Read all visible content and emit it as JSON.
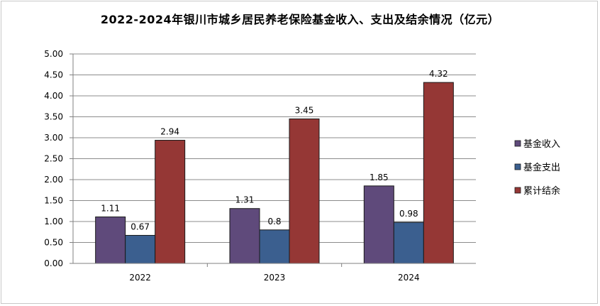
{
  "chart_data": {
    "type": "bar",
    "title": "2022-2024年银川市城乡居民养老保险基金收入、支出及结余情况（亿元）",
    "categories": [
      "2022",
      "2023",
      "2024"
    ],
    "series": [
      {
        "name": "基金收入",
        "values": [
          1.11,
          1.31,
          1.85
        ],
        "labels": [
          "1.11",
          "1.31",
          "1.85"
        ],
        "color": "#5f4a7b"
      },
      {
        "name": "基金支出",
        "values": [
          0.67,
          0.8,
          0.98
        ],
        "labels": [
          "0.67",
          "0.8",
          "0.98"
        ],
        "color": "#3b5f8f"
      },
      {
        "name": "累计结余",
        "values": [
          2.94,
          3.45,
          4.32
        ],
        "labels": [
          "2.94",
          "3.45",
          "4.32"
        ],
        "color": "#953735"
      }
    ],
    "ylim": [
      0,
      5
    ],
    "yticks": [
      "0.00",
      "0.50",
      "1.00",
      "1.50",
      "2.00",
      "2.50",
      "3.00",
      "3.50",
      "4.00",
      "4.50",
      "5.00"
    ],
    "grid": true,
    "legend_position": "right"
  }
}
